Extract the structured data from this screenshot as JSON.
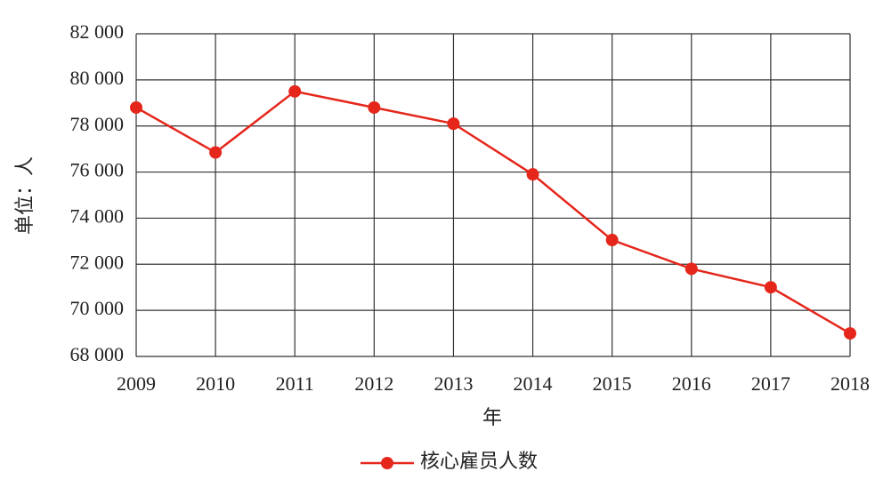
{
  "chart_data": {
    "type": "line",
    "x_label": "年",
    "y_label": "单位：人",
    "x": [
      2009,
      2010,
      2011,
      2012,
      2013,
      2014,
      2015,
      2016,
      2017,
      2018
    ],
    "xlim": [
      2009,
      2018
    ],
    "xticks": [
      2009,
      2010,
      2011,
      2012,
      2013,
      2014,
      2015,
      2016,
      2017,
      2018
    ],
    "ylim": [
      68000,
      82000
    ],
    "yticks": [
      {
        "value": 68000,
        "label": "68 000"
      },
      {
        "value": 70000,
        "label": "70 000"
      },
      {
        "value": 72000,
        "label": "72 000"
      },
      {
        "value": 74000,
        "label": "74 000"
      },
      {
        "value": 76000,
        "label": "76 000"
      },
      {
        "value": 78000,
        "label": "78 000"
      },
      {
        "value": 80000,
        "label": "80 000"
      },
      {
        "value": 82000,
        "label": "82 000"
      }
    ],
    "grid": true,
    "series": [
      {
        "name": "核心雇员人数",
        "color": "#e5261b",
        "values": [
          78800,
          76850,
          79500,
          78800,
          78100,
          75900,
          73050,
          71800,
          71000,
          69000
        ]
      }
    ]
  }
}
